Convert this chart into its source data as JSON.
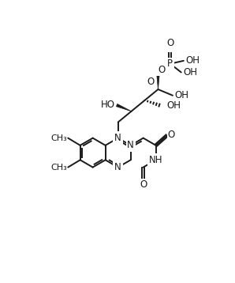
{
  "bg_color": "#ffffff",
  "line_color": "#1a1a1a",
  "line_width": 1.4,
  "font_size": 8.5,
  "figsize": [
    2.98,
    3.58
  ],
  "dpi": 100,
  "BL": 24
}
